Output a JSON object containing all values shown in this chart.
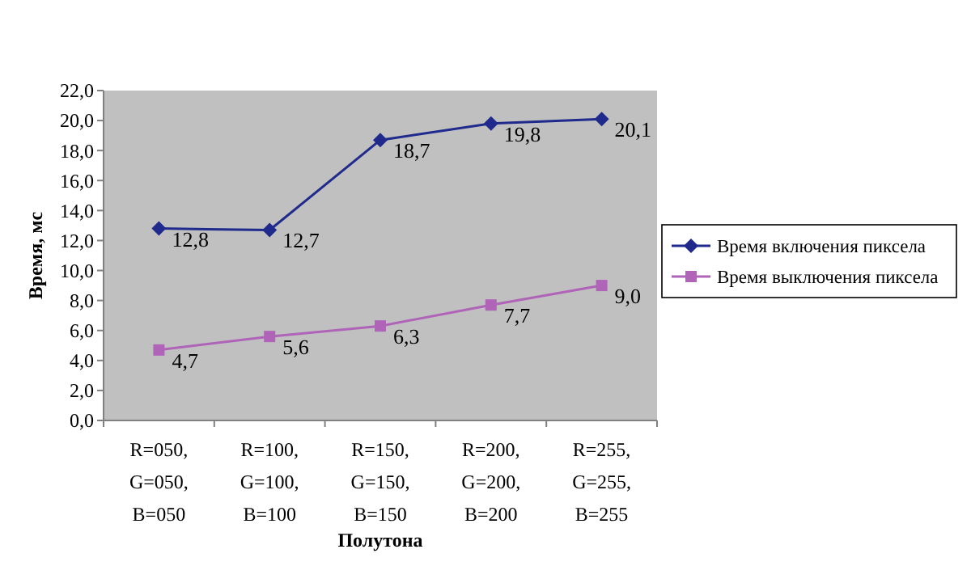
{
  "chart_data": {
    "type": "line",
    "xlabel": "Полутона",
    "ylabel": "Время, мс",
    "categories": [
      "R=050,\nG=050,\nB=050",
      "R=100,\nG=100,\nB=100",
      "R=150,\nG=150,\nB=150",
      "R=200,\nG=200,\nB=200",
      "R=255,\nG=255,\nB=255"
    ],
    "series": [
      {
        "name": "Время включения пиксела",
        "color": "#1f2a8c",
        "marker": "diamond",
        "values": [
          12.8,
          12.7,
          18.7,
          19.8,
          20.1
        ],
        "value_labels": [
          "12,8",
          "12,7",
          "18,7",
          "19,8",
          "20,1"
        ]
      },
      {
        "name": "Время выключения пиксела",
        "color": "#b064b8",
        "marker": "square",
        "values": [
          4.7,
          5.6,
          6.3,
          7.7,
          9.0
        ],
        "value_labels": [
          "4,7",
          "5,6",
          "6,3",
          "7,7",
          "9,0"
        ]
      }
    ],
    "ylim": [
      0,
      22
    ],
    "yticks": [
      {
        "value": 0,
        "label": "0,0"
      },
      {
        "value": 2,
        "label": "2,0"
      },
      {
        "value": 4,
        "label": "4,0"
      },
      {
        "value": 6,
        "label": "6,0"
      },
      {
        "value": 8,
        "label": "8,0"
      },
      {
        "value": 10,
        "label": "10,0"
      },
      {
        "value": 12,
        "label": "12,0"
      },
      {
        "value": 14,
        "label": "14,0"
      },
      {
        "value": 16,
        "label": "16,0"
      },
      {
        "value": 18,
        "label": "18,0"
      },
      {
        "value": 20,
        "label": "20,0"
      },
      {
        "value": 22,
        "label": "22,0"
      }
    ],
    "grid": false,
    "legend": "right"
  }
}
